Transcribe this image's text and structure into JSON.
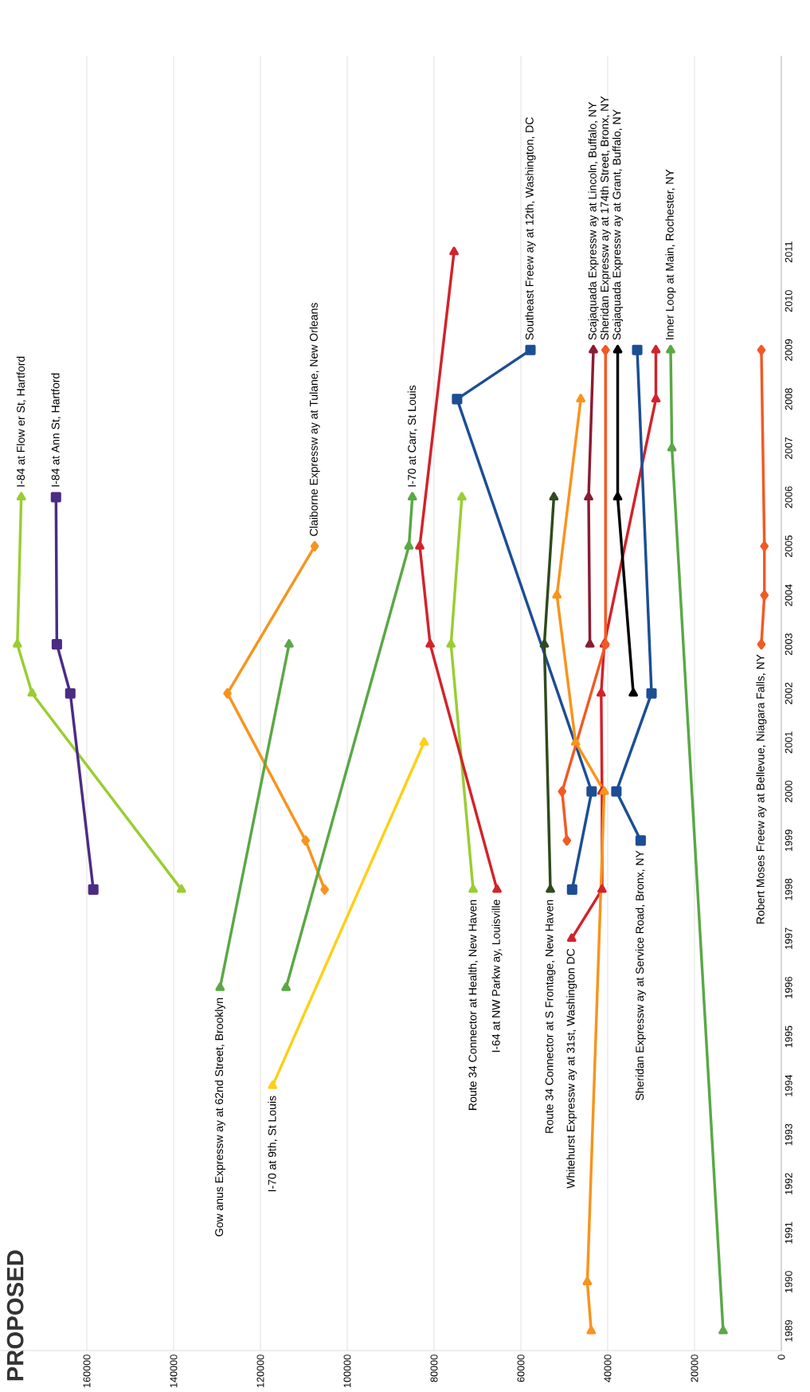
{
  "chart_data": {
    "type": "line",
    "title": "PROPOSED",
    "ylim": [
      1988.6,
      2015
    ],
    "yticks": [
      1989,
      1990,
      1991,
      1992,
      1993,
      1994,
      1995,
      1996,
      1997,
      1998,
      1999,
      2000,
      2001,
      2002,
      2003,
      2004,
      2005,
      2006,
      2007,
      2008,
      2009,
      2010,
      2011
    ],
    "xlim": [
      180000,
      0
    ],
    "xticks": [
      0,
      20000,
      40000,
      60000,
      80000,
      100000,
      120000,
      140000,
      160000
    ],
    "grid": "x",
    "series": [
      {
        "name": "I-84 at Flow er St, Hartford",
        "color": "#9acd32",
        "marker": "triangle",
        "values": [
          1998,
          2002,
          2003,
          2006
        ],
        "x": [
          138200,
          172600,
          176000,
          175100
        ]
      },
      {
        "name": "I-84 at Ann St, Hartford",
        "color": "#4b2c83",
        "marker": "square",
        "values": [
          1998,
          2002,
          2003,
          2006
        ],
        "x": [
          158500,
          163800,
          166900,
          167100
        ]
      },
      {
        "name": "Claiborne Expressw ay at Tulane, New  Orleans",
        "color": "#f7941d",
        "marker": "diamond",
        "values": [
          1998,
          1999,
          2002,
          2005
        ],
        "x": [
          105200,
          109600,
          127600,
          107500
        ]
      },
      {
        "name": "Gow anus Expressw ay at 62nd Street, Brooklyn",
        "color": "#5aa846",
        "marker": "triangle",
        "values": [
          1996,
          2003
        ],
        "x": [
          129300,
          113400
        ]
      },
      {
        "name": "I-70 at Carr, St Louis",
        "color": "#5aa846",
        "marker": "triangle",
        "values": [
          1996,
          2005,
          2006
        ],
        "x": [
          114100,
          85800,
          85000
        ]
      },
      {
        "name": "I-70 at 9th, St Louis",
        "color": "#fdd017",
        "marker": "triangle",
        "values": [
          1994,
          2001
        ],
        "x": [
          117200,
          82300
        ]
      },
      {
        "name": "Route 34 Connector at Health, New  Haven",
        "color": "#9acd32",
        "marker": "triangle",
        "values": [
          1998,
          2003,
          2006
        ],
        "x": [
          71000,
          76100,
          73600
        ]
      },
      {
        "name": "I-64 at NW Parkw ay, Louisville",
        "color": "#d2232a",
        "marker": "triangle",
        "values": [
          1998,
          2003,
          2005,
          2011
        ],
        "x": [
          65500,
          80900,
          83300,
          75400
        ]
      },
      {
        "name": "Southeast Freew ay at 12th, Washington, DC",
        "color": "#1c4e94",
        "marker": "square",
        "values": [
          1998,
          2000,
          2008,
          2009
        ],
        "x": [
          48200,
          43700,
          74700,
          57800
        ]
      },
      {
        "name": "Route 34 Connector at S Frontage, New  Haven",
        "color": "#2f4a1e",
        "marker": "triangle",
        "values": [
          1998,
          2003,
          2006
        ],
        "x": [
          53200,
          54600,
          52400
        ]
      },
      {
        "name": "Whitehurst Expressw ay at 31st, Washington DC",
        "color": "#d2232a",
        "marker": "triangle",
        "values": [
          1997,
          1998,
          2000,
          2002,
          2003,
          2008,
          2009
        ],
        "x": [
          48300,
          41300,
          41300,
          41500,
          40800,
          28900,
          28900
        ]
      },
      {
        "name": "Sheridan Expressw ay at Service Road, Bronx, NY",
        "color": "#1c4e94",
        "marker": "square",
        "values": [
          1999,
          2000,
          2002,
          2009
        ],
        "x": [
          32400,
          38000,
          29900,
          33200
        ]
      },
      {
        "color": "#f7941d",
        "marker": "triangle",
        "values": [
          1989,
          1990,
          2000,
          2001,
          2004,
          2008
        ],
        "x": [
          43800,
          44700,
          40800,
          47400,
          51700,
          46200
        ]
      },
      {
        "name": "Scajaquada Expressw ay at Lincoln, Buffalo, NY",
        "color": "#8b1c31",
        "marker": "triangle",
        "values": [
          2003,
          2006,
          2009
        ],
        "x": [
          44100,
          44400,
          43300
        ]
      },
      {
        "name": "Sheridan Expressw ay at 174th Street, Bronx, NY",
        "color": "#f15a24",
        "marker": "diamond",
        "values": [
          1999,
          2000,
          2003,
          2009
        ],
        "x": [
          49400,
          50500,
          40500,
          40500
        ]
      },
      {
        "name": "Scajaquada Expressw ay at Grant, Buffalo, NY",
        "color": "#000000",
        "marker": "triangle",
        "values": [
          2002,
          2006,
          2009
        ],
        "x": [
          34100,
          37700,
          37700
        ]
      },
      {
        "name": "Inner Loop at Main, Rochester, NY",
        "color": "#5aa846",
        "marker": "triangle",
        "values": [
          1989,
          2007,
          2009
        ],
        "x": [
          13400,
          25200,
          25500
        ]
      },
      {
        "name": "Robert Moses Freew ay at Bellevue, Niagara Falls, NY",
        "color": "#f15a24",
        "marker": "diamond",
        "values": [
          2003,
          2004,
          2005,
          2009
        ],
        "x": [
          4600,
          3900,
          3900,
          4600
        ]
      }
    ]
  }
}
